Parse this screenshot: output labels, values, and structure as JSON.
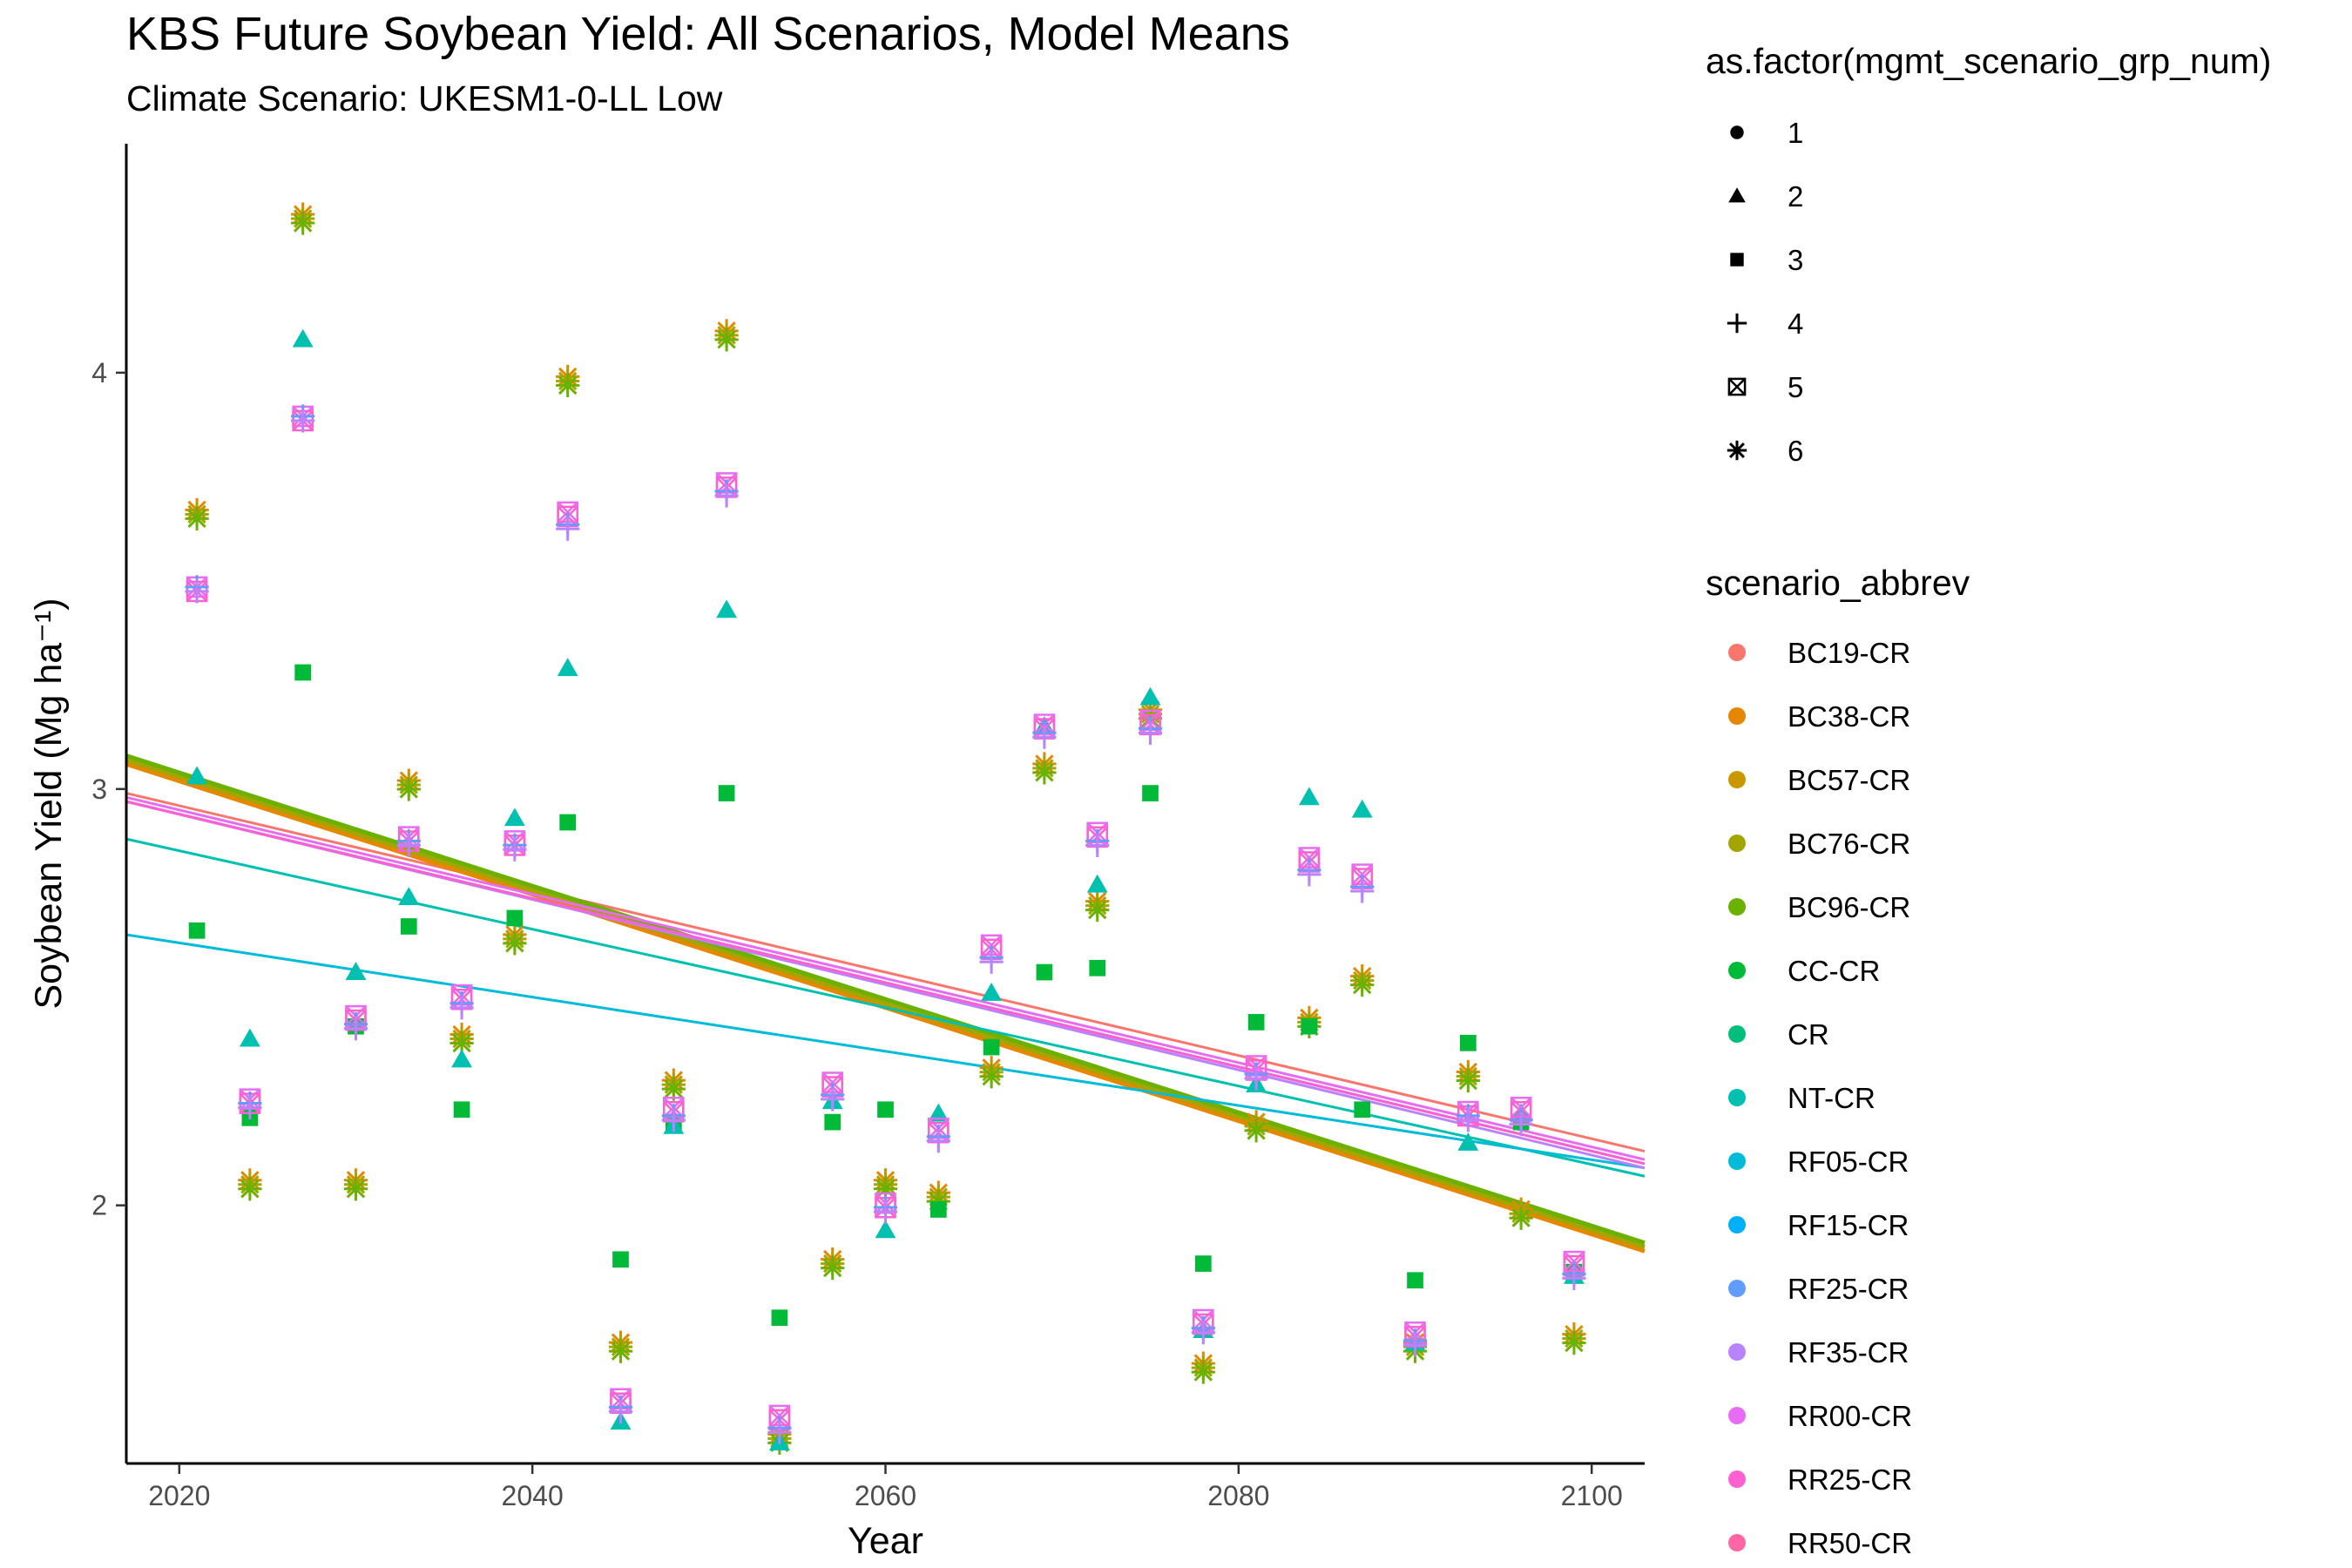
{
  "title": "KBS  Future Soybean Yield: All Scenarios, Model Means",
  "subtitle": "Climate Scenario: UKESM1-0-LL Low",
  "chart_data": {
    "type": "scatter",
    "xlabel": "Year",
    "ylabel": "Soybean Yield (Mg ha⁻¹)",
    "xlim": [
      2017,
      2103
    ],
    "ylim": [
      1.38,
      4.55
    ],
    "x_ticks": [
      2020,
      2040,
      2060,
      2080,
      2100
    ],
    "y_ticks": [
      2,
      3,
      4
    ],
    "grid": false,
    "legend_position": "right",
    "shape_legend": {
      "title": "as.factor(mgmt_scenario_grp_num)",
      "entries": [
        {
          "label": "1",
          "shape": "circle"
        },
        {
          "label": "2",
          "shape": "triangle"
        },
        {
          "label": "3",
          "shape": "square"
        },
        {
          "label": "4",
          "shape": "plus"
        },
        {
          "label": "5",
          "shape": "boxcross"
        },
        {
          "label": "6",
          "shape": "asterisk"
        }
      ]
    },
    "color_legend": {
      "title": "scenario_abbrev",
      "entries": [
        {
          "label": "BC19-CR",
          "color": "#F8766D"
        },
        {
          "label": "BC38-CR",
          "color": "#E58700"
        },
        {
          "label": "BC57-CR",
          "color": "#C99800"
        },
        {
          "label": "BC76-CR",
          "color": "#A3A500"
        },
        {
          "label": "BC96-CR",
          "color": "#6BB100"
        },
        {
          "label": "CC-CR",
          "color": "#00BA38"
        },
        {
          "label": "CR",
          "color": "#00BF7D"
        },
        {
          "label": "NT-CR",
          "color": "#00C0AF"
        },
        {
          "label": "RF05-CR",
          "color": "#00BCD8"
        },
        {
          "label": "RF15-CR",
          "color": "#00B0F6"
        },
        {
          "label": "RF25-CR",
          "color": "#619CFF"
        },
        {
          "label": "RF35-CR",
          "color": "#B983FF"
        },
        {
          "label": "RR00-CR",
          "color": "#E76BF3"
        },
        {
          "label": "RR25-CR",
          "color": "#FD61D1"
        },
        {
          "label": "RR50-CR",
          "color": "#FF67A4"
        }
      ]
    },
    "series": [
      {
        "name": "BC-CR",
        "shape": "asterisk",
        "colors": [
          "#E58700",
          "#A3A500",
          "#6BB100"
        ],
        "x": [
          2021,
          2024,
          2027,
          2030,
          2033,
          2036,
          2039,
          2042,
          2045,
          2048,
          2051,
          2054,
          2057,
          2060,
          2063,
          2066,
          2069,
          2072,
          2075,
          2078,
          2081,
          2084,
          2087,
          2090,
          2093,
          2096,
          2099
        ],
        "y": [
          3.66,
          2.05,
          4.37,
          2.05,
          3.01,
          2.4,
          2.64,
          3.98,
          1.66,
          2.29,
          4.09,
          1.44,
          1.86,
          2.05,
          2.02,
          2.32,
          3.05,
          2.72,
          3.18,
          1.61,
          2.19,
          2.44,
          2.54,
          1.66,
          2.31,
          1.98,
          1.68
        ]
      },
      {
        "name": "CC-CR",
        "shape": "square",
        "colors": [
          "#00BA38"
        ],
        "x": [
          2021,
          2024,
          2027,
          2030,
          2033,
          2036,
          2039,
          2042,
          2045,
          2048,
          2051,
          2054,
          2057,
          2060,
          2063,
          2066,
          2069,
          2072,
          2075,
          2078,
          2081,
          2084,
          2087,
          2090,
          2093,
          2096,
          2099
        ],
        "y": [
          2.66,
          2.21,
          3.28,
          2.43,
          2.67,
          2.23,
          2.69,
          2.92,
          1.87,
          2.2,
          2.99,
          1.73,
          2.2,
          2.23,
          1.99,
          2.38,
          2.56,
          2.57,
          2.99,
          1.86,
          2.44,
          2.43,
          2.23,
          1.82,
          2.39,
          2.2,
          1.84
        ]
      },
      {
        "name": "NT-CR",
        "shape": "triangle",
        "colors": [
          "#00C0AF"
        ],
        "x": [
          2021,
          2024,
          2027,
          2030,
          2033,
          2036,
          2039,
          2042,
          2045,
          2048,
          2051,
          2054,
          2057,
          2060,
          2063,
          2066,
          2069,
          2072,
          2075,
          2078,
          2081,
          2084,
          2087,
          2090,
          2093,
          2096,
          2099
        ],
        "y": [
          3.03,
          2.4,
          4.08,
          2.56,
          2.74,
          2.35,
          2.93,
          3.29,
          1.48,
          2.19,
          3.43,
          1.43,
          2.25,
          1.94,
          2.22,
          2.51,
          3.15,
          2.77,
          3.22,
          1.7,
          2.29,
          2.98,
          2.95,
          1.67,
          2.15,
          2.22,
          1.83
        ]
      },
      {
        "name": "RR-CR",
        "shape": "boxcross",
        "colors": [
          "#E76BF3",
          "#FD61D1"
        ],
        "x": [
          2021,
          2024,
          2027,
          2030,
          2033,
          2036,
          2039,
          2042,
          2045,
          2048,
          2051,
          2054,
          2057,
          2060,
          2063,
          2066,
          2069,
          2072,
          2075,
          2078,
          2081,
          2084,
          2087,
          2090,
          2093,
          2096,
          2099
        ],
        "y": [
          3.48,
          2.25,
          3.89,
          2.45,
          2.88,
          2.5,
          2.87,
          3.66,
          1.53,
          2.23,
          3.73,
          1.49,
          2.29,
          2.0,
          2.18,
          2.62,
          3.15,
          2.89,
          3.16,
          1.72,
          2.33,
          2.83,
          2.79,
          1.69,
          2.22,
          2.23,
          1.86
        ]
      },
      {
        "name": "RF-CR",
        "shape": "plus",
        "colors": [
          "#619CFF",
          "#B983FF"
        ],
        "x": [
          2021,
          2024,
          2027,
          2030,
          2033,
          2036,
          2039,
          2042,
          2045,
          2048,
          2051,
          2054,
          2057,
          2060,
          2063,
          2066,
          2069,
          2072,
          2075,
          2078,
          2081,
          2084,
          2087,
          2090,
          2093,
          2096,
          2099
        ],
        "y": [
          3.48,
          2.24,
          3.89,
          2.43,
          2.87,
          2.48,
          2.86,
          3.63,
          1.51,
          2.21,
          3.71,
          1.46,
          2.26,
          1.99,
          2.16,
          2.59,
          3.13,
          2.87,
          3.14,
          1.7,
          2.31,
          2.8,
          2.76,
          1.67,
          2.21,
          2.2,
          1.83
        ]
      }
    ],
    "trend_lines": [
      {
        "color": "#F8766D",
        "width": 3,
        "y": [
          2.99,
          2.13
        ]
      },
      {
        "color": "#E58700",
        "width": 5,
        "y": [
          3.06,
          1.89
        ]
      },
      {
        "color": "#A3A500",
        "width": 5,
        "y": [
          3.07,
          1.9
        ]
      },
      {
        "color": "#6BB100",
        "width": 5,
        "y": [
          3.08,
          1.91
        ]
      },
      {
        "color": "#00C0AF",
        "width": 3,
        "y": [
          2.88,
          2.07
        ]
      },
      {
        "color": "#00BCD8",
        "width": 3,
        "y": [
          2.65,
          2.09
        ]
      },
      {
        "color": "#619CFF",
        "width": 3,
        "y": [
          2.97,
          2.1
        ]
      },
      {
        "color": "#B983FF",
        "width": 3,
        "y": [
          2.97,
          2.09
        ]
      },
      {
        "color": "#E76BF3",
        "width": 3,
        "y": [
          2.98,
          2.11
        ]
      },
      {
        "color": "#FD61D1",
        "width": 3,
        "y": [
          2.97,
          2.1
        ]
      }
    ]
  }
}
